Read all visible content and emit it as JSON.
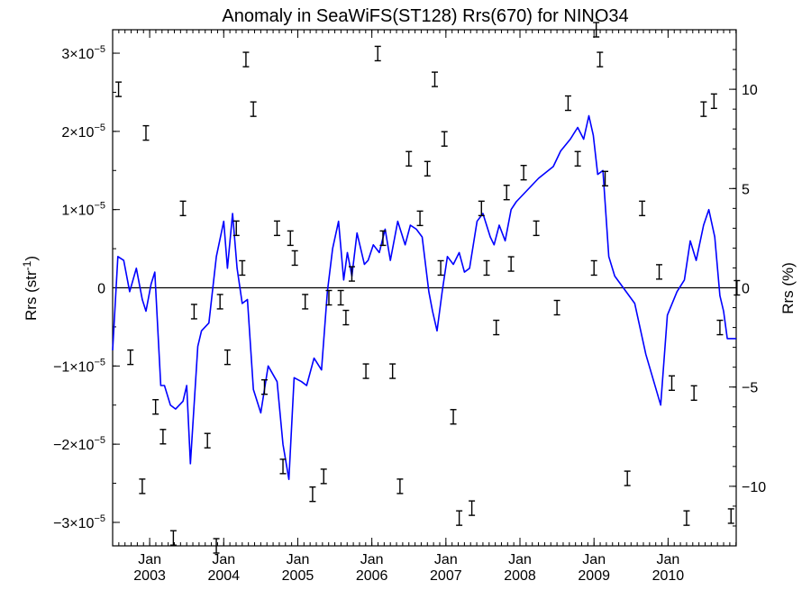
{
  "chart_data": {
    "type": "line",
    "title": "Anomaly in SeaWiFS(ST128) Rrs(670) for NINO34",
    "ylabel_left": "Rrs (str",
    "ylabel_left_sup": "-1",
    "ylabel_left_close": ")",
    "ylabel_right": "Rrs (%)",
    "x_unit": "decimal year",
    "xlim": [
      2002.5,
      2010.92
    ],
    "ylim_left": [
      -3.3e-05,
      3.3e-05
    ],
    "ylim_right": [
      -13,
      13
    ],
    "left_ticks": [
      {
        "value": 3e-05,
        "mant": "3",
        "exp": "−5"
      },
      {
        "value": 2e-05,
        "mant": "2",
        "exp": "−5"
      },
      {
        "value": 1e-05,
        "mant": "1",
        "exp": "−5"
      },
      {
        "value": 0,
        "plain": "0"
      },
      {
        "value": -1e-05,
        "mant": "−1",
        "exp": "−5"
      },
      {
        "value": -2e-05,
        "mant": "−2",
        "exp": "−5"
      },
      {
        "value": -3e-05,
        "mant": "−3",
        "exp": "−5"
      }
    ],
    "times_sign": "×10",
    "right_ticks": [
      {
        "value": 10,
        "label": "10"
      },
      {
        "value": 5,
        "label": "5"
      },
      {
        "value": 0,
        "label": "0"
      },
      {
        "value": -5,
        "label": "−5"
      },
      {
        "value": -10,
        "label": "−10"
      }
    ],
    "x_ticks": [
      {
        "value": 2003,
        "month": "Jan",
        "year": "2003"
      },
      {
        "value": 2004,
        "month": "Jan",
        "year": "2004"
      },
      {
        "value": 2005,
        "month": "Jan",
        "year": "2005"
      },
      {
        "value": 2006,
        "month": "Jan",
        "year": "2006"
      },
      {
        "value": 2007,
        "month": "Jan",
        "year": "2007"
      },
      {
        "value": 2008,
        "month": "Jan",
        "year": "2008"
      },
      {
        "value": 2009,
        "month": "Jan",
        "year": "2009"
      },
      {
        "value": 2010,
        "month": "Jan",
        "year": "2010"
      }
    ],
    "zero_line": true,
    "series": [
      {
        "style": "line",
        "color": "#0000ff",
        "x": [
          2002.5,
          2002.57,
          2002.65,
          2002.73,
          2002.82,
          2002.9,
          2002.95,
          2003.02,
          2003.07,
          2003.15,
          2003.2,
          2003.28,
          2003.35,
          2003.45,
          2003.5,
          2003.55,
          2003.65,
          2003.7,
          2003.8,
          2003.9,
          2004.0,
          2004.05,
          2004.12,
          2004.18,
          2004.25,
          2004.32,
          2004.4,
          2004.5,
          2004.6,
          2004.72,
          2004.8,
          2004.88,
          2004.95,
          2005.05,
          2005.12,
          2005.22,
          2005.32,
          2005.4,
          2005.47,
          2005.55,
          2005.62,
          2005.67,
          2005.73,
          2005.8,
          2005.9,
          2005.95,
          2006.02,
          2006.1,
          2006.18,
          2006.25,
          2006.35,
          2006.45,
          2006.52,
          2006.6,
          2006.68,
          2006.77,
          2006.82,
          2006.88,
          2006.95,
          2007.02,
          2007.1,
          2007.18,
          2007.25,
          2007.32,
          2007.42,
          2007.5,
          2007.6,
          2007.65,
          2007.72,
          2007.8,
          2007.88,
          2007.95,
          2008.25,
          2008.45,
          2008.55,
          2008.68,
          2008.78,
          2008.86,
          2008.93,
          2008.99,
          2009.05,
          2009.12,
          2009.2,
          2009.28,
          2009.55,
          2009.7,
          2009.9,
          2009.99,
          2010.12,
          2010.22,
          2010.3,
          2010.38,
          2010.48,
          2010.55,
          2010.63,
          2010.7,
          2010.75,
          2010.8,
          2010.92
        ],
        "y": [
          -8e-06,
          4e-06,
          3.5e-06,
          -5e-07,
          2.5e-06,
          -1.5e-06,
          -3e-06,
          5e-07,
          2e-06,
          -1.25e-05,
          -1.25e-05,
          -1.5e-05,
          -1.55e-05,
          -1.45e-05,
          -1.25e-05,
          -2.25e-05,
          -7.5e-06,
          -5.5e-06,
          -4.5e-06,
          4e-06,
          8.5e-06,
          2.5e-06,
          9.5e-06,
          2.5e-06,
          -2e-06,
          -1.5e-06,
          -1.3e-05,
          -1.6e-05,
          -1e-05,
          -1.2e-05,
          -2e-05,
          -2.45e-05,
          -1.15e-05,
          -1.2e-05,
          -1.25e-05,
          -9e-06,
          -1.05e-05,
          -5e-07,
          5e-06,
          8.5e-06,
          1e-06,
          4.5e-06,
          1.5e-06,
          7e-06,
          3e-06,
          3.5e-06,
          5.5e-06,
          4.5e-06,
          7.5e-06,
          3.5e-06,
          8.5e-06,
          5.5e-06,
          8e-06,
          7.5e-06,
          6.5e-06,
          -5e-07,
          -3e-06,
          -5.5e-06,
          -5e-07,
          4e-06,
          3e-06,
          4.5e-06,
          2e-06,
          2.5e-06,
          8.5e-06,
          9.5e-06,
          6.5e-06,
          5.5e-06,
          8e-06,
          6e-06,
          1e-05,
          1.1e-05,
          1.4e-05,
          1.55e-05,
          1.75e-05,
          1.9e-05,
          2.05e-05,
          1.9e-05,
          2.2e-05,
          1.95e-05,
          1.45e-05,
          1.5e-05,
          4e-06,
          1.5e-06,
          -2e-06,
          -8.5e-06,
          -1.5e-05,
          -3.5e-06,
          -5e-07,
          1e-06,
          6e-06,
          3.5e-06,
          8e-06,
          1e-05,
          6.5e-06,
          -1e-06,
          -3e-06,
          -6.5e-06,
          -6.5e-06
        ]
      },
      {
        "style": "errorbar",
        "color": "#000000",
        "axis": "right",
        "x": [
          2002.58,
          2002.74,
          2002.9,
          2002.95,
          2003.08,
          2003.18,
          2003.32,
          2003.45,
          2003.6,
          2003.78,
          2003.9,
          2003.95,
          2004.05,
          2004.17,
          2004.25,
          2004.3,
          2004.4,
          2004.55,
          2004.72,
          2004.8,
          2004.9,
          2004.96,
          2005.1,
          2005.2,
          2005.35,
          2005.42,
          2005.58,
          2005.65,
          2005.73,
          2005.92,
          2006.08,
          2006.15,
          2006.28,
          2006.38,
          2006.5,
          2006.65,
          2006.75,
          2006.85,
          2006.93,
          2006.98,
          2007.1,
          2007.18,
          2007.35,
          2007.48,
          2007.55,
          2007.68,
          2007.82,
          2007.88,
          2008.05,
          2008.22,
          2008.5,
          2008.65,
          2008.78,
          2009.0,
          2009.03,
          2009.08,
          2009.15,
          2009.45,
          2009.65,
          2009.88,
          2010.05,
          2010.25,
          2010.35,
          2010.48,
          2010.62,
          2010.7,
          2010.85,
          2010.93
        ],
        "y": [
          10,
          -3.5,
          -10,
          7.8,
          -6,
          -7.5,
          -12.6,
          4,
          -1.2,
          -7.7,
          -13,
          -0.7,
          -3.5,
          3,
          1,
          11.5,
          9,
          -5,
          3,
          -9,
          2.5,
          1.5,
          -0.7,
          -10.4,
          -9.5,
          -0.5,
          -0.5,
          -1.5,
          0.7,
          -4.2,
          11.8,
          2.5,
          -4.2,
          -10,
          6.5,
          3.5,
          6,
          10.5,
          1,
          7.5,
          -6.5,
          -11.6,
          -11.1,
          4,
          1,
          -2,
          4.8,
          1.2,
          5.8,
          3,
          -1,
          9.3,
          6.5,
          1,
          13,
          11.5,
          5.5,
          -9.6,
          4,
          0.8,
          -4.8,
          -11.6,
          -5.3,
          9,
          9.4,
          -2,
          -11.5,
          0
        ]
      }
    ]
  }
}
